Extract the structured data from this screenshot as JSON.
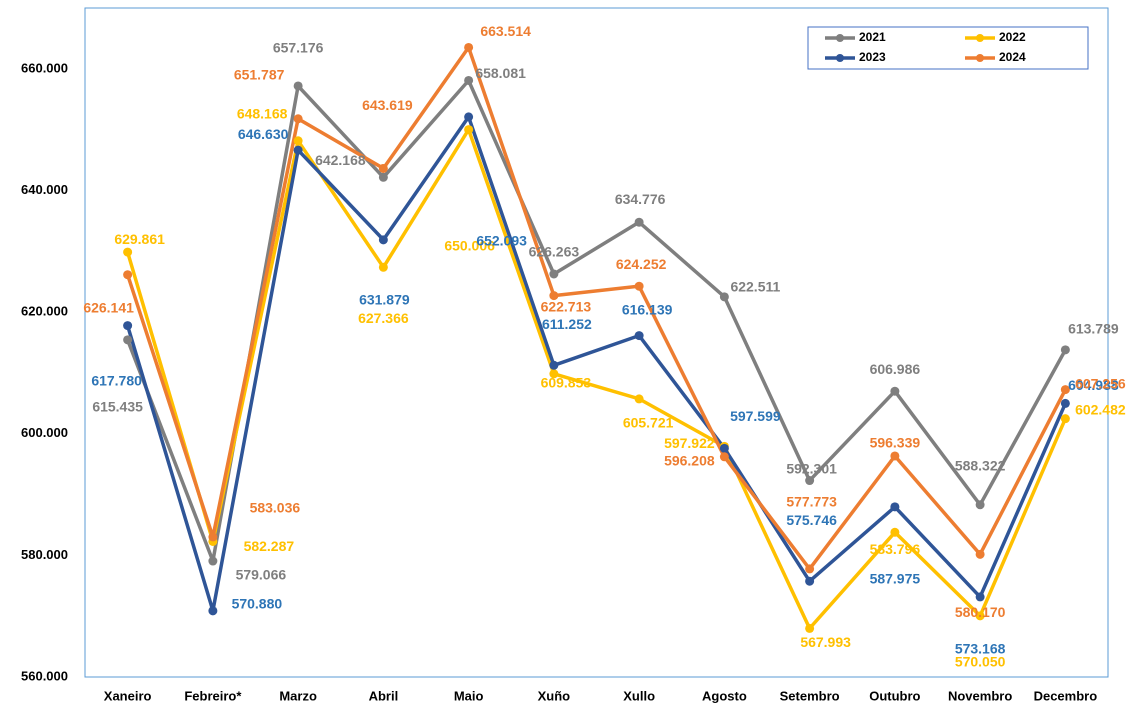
{
  "chart_data": {
    "type": "line",
    "categories": [
      "Xaneiro",
      "Febreiro*",
      "Marzo",
      "Abril",
      "Maio",
      "Xuño",
      "Xullo",
      "Agosto",
      "Setembro",
      "Outubro",
      "Novembro",
      "Decembro"
    ],
    "ylim": [
      560000,
      670000
    ],
    "yticks": [
      {
        "value": 560000,
        "label": "560.000"
      },
      {
        "value": 580000,
        "label": "580.000"
      },
      {
        "value": 600000,
        "label": "600.000"
      },
      {
        "value": 620000,
        "label": "620.000"
      },
      {
        "value": 640000,
        "label": "640.000"
      },
      {
        "value": 660000,
        "label": "660.000"
      }
    ],
    "grid": false,
    "legend": "top-right",
    "series": [
      {
        "name": "2021",
        "color": "#7f7f7f",
        "label_color": "#7f7f7f",
        "values": [
          615435,
          579066,
          657176,
          642168,
          658081,
          626263,
          634776,
          622511,
          592301,
          606986,
          588322,
          613789
        ],
        "value_labels": [
          "615.435",
          "579.066",
          "657.176",
          "642.168",
          "658.081",
          "626.263",
          "634.776",
          "622.511",
          "592.301",
          "606.986",
          "588.322",
          "613.789"
        ]
      },
      {
        "name": "2022",
        "color": "#ffc000",
        "label_color": "#ffc000",
        "values": [
          629861,
          582287,
          648168,
          627366,
          650006,
          609853,
          605721,
          597922,
          567993,
          583796,
          570050,
          602482
        ],
        "value_labels": [
          "629.861",
          "582.287",
          "648.168",
          "627.366",
          "650.006",
          "609.853",
          "605.721",
          "597.922",
          "567.993",
          "583.796",
          "570.050",
          "602.482"
        ]
      },
      {
        "name": "2023",
        "color": "#2f5597",
        "label_color": "#2e75b6",
        "values": [
          617780,
          570880,
          646630,
          631879,
          652093,
          611252,
          616139,
          597599,
          575746,
          587975,
          573168,
          604988
        ],
        "value_labels": [
          "617.780",
          "570.880",
          "646.630",
          "631.879",
          "652.093",
          "611.252",
          "616.139",
          "597.599",
          "575.746",
          "587.975",
          "573.168",
          "604.988"
        ]
      },
      {
        "name": "2024",
        "color": "#ed7d31",
        "label_color": "#ed7d31",
        "values": [
          626141,
          583036,
          651787,
          643619,
          663514,
          622713,
          624252,
          596208,
          577773,
          596339,
          580170,
          607256
        ],
        "value_labels": [
          "626.141",
          "583.036",
          "651.787",
          "643.619",
          "663.514",
          "622.713",
          "624.252",
          "596.208",
          "577.773",
          "596.339",
          "580.170",
          "607.256"
        ]
      }
    ]
  }
}
